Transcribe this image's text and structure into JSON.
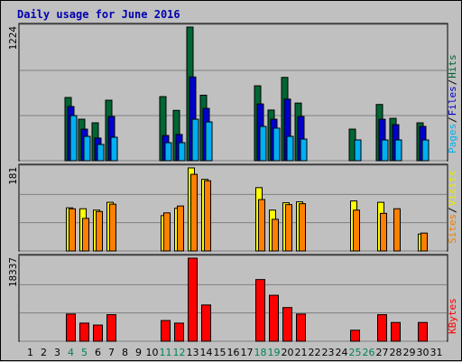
{
  "chart_data": {
    "type": "bar",
    "title": "Daily usage for June 2016",
    "categories": [
      "1",
      "2",
      "3",
      "4",
      "5",
      "6",
      "7",
      "8",
      "9",
      "10",
      "11",
      "12",
      "13",
      "14",
      "15",
      "16",
      "17",
      "18",
      "19",
      "20",
      "21",
      "22",
      "23",
      "24",
      "25",
      "26",
      "27",
      "28",
      "29",
      "30",
      "31"
    ],
    "weekend_days": [
      "4",
      "5",
      "11",
      "12",
      "18",
      "19",
      "25",
      "26"
    ],
    "panels": [
      {
        "name": "top",
        "ymax_label": "1224",
        "ymax": 1224,
        "legend": [
          {
            "text": "Hits",
            "color": "#006633"
          },
          {
            "text": "Files",
            "color": "#0000cc"
          },
          {
            "text": "Pages",
            "color": "#00b0f0"
          }
        ],
        "series": [
          {
            "name": "Hits",
            "color": "#006633",
            "values": [
              0,
              0,
              0,
              579,
              380,
              347,
              554,
              0,
              0,
              0,
              587,
              461,
              1224,
              600,
              0,
              0,
              0,
              686,
              464,
              763,
              528,
              0,
              0,
              0,
              289,
              0,
              515,
              388,
              0,
              347,
              0
            ]
          },
          {
            "name": "Files",
            "color": "#0000cc",
            "values": [
              0,
              0,
              0,
              496,
              289,
              207,
              405,
              0,
              0,
              0,
              231,
              240,
              767,
              479,
              0,
              0,
              0,
              520,
              380,
              564,
              405,
              0,
              0,
              0,
              0,
              0,
              380,
              330,
              0,
              314,
              0
            ]
          },
          {
            "name": "Pages",
            "color": "#00b0f0",
            "values": [
              0,
              0,
              0,
              413,
              223,
              149,
              215,
              0,
              0,
              0,
              165,
              165,
              380,
              355,
              0,
              0,
              0,
              314,
              298,
              223,
              198,
              0,
              0,
              0,
              190,
              0,
              190,
              190,
              0,
              190,
              0
            ]
          }
        ]
      },
      {
        "name": "middle",
        "ymax_label": "181",
        "ymax": 181,
        "legend": [
          {
            "text": "Visits",
            "color": "#e8e800"
          },
          {
            "text": "Sites",
            "color": "#f08000"
          }
        ],
        "series": [
          {
            "name": "Visits",
            "color": "#ffff00",
            "values": [
              0,
              0,
              0,
              94,
              92,
              89,
              106,
              0,
              0,
              0,
              77,
              93,
              181,
              156,
              0,
              0,
              0,
              138,
              89,
              105,
              107,
              0,
              0,
              0,
              109,
              0,
              106,
              0,
              0,
              37,
              0
            ]
          },
          {
            "name": "Sites",
            "color": "#ff8000",
            "values": [
              0,
              0,
              0,
              92,
              71,
              86,
              102,
              0,
              0,
              0,
              83,
              98,
              167,
              153,
              0,
              0,
              0,
              112,
              69,
              101,
              103,
              0,
              0,
              0,
              89,
              0,
              82,
              92,
              0,
              39,
              0
            ]
          }
        ]
      },
      {
        "name": "bottom",
        "ymax_label": "18337",
        "ymax": 18337,
        "legend": [
          {
            "text": "KBytes",
            "color": "#ff0000"
          }
        ],
        "series": [
          {
            "name": "KBytes",
            "color": "#ff0000",
            "values": [
              0,
              0,
              0,
              6007,
              4002,
              3574,
              5862,
              0,
              0,
              0,
              4575,
              4002,
              18337,
              8005,
              0,
              0,
              0,
              13622,
              10147,
              7434,
              6007,
              0,
              0,
              0,
              2430,
              0,
              5862,
              4145,
              0,
              4145,
              0
            ]
          }
        ]
      }
    ]
  }
}
